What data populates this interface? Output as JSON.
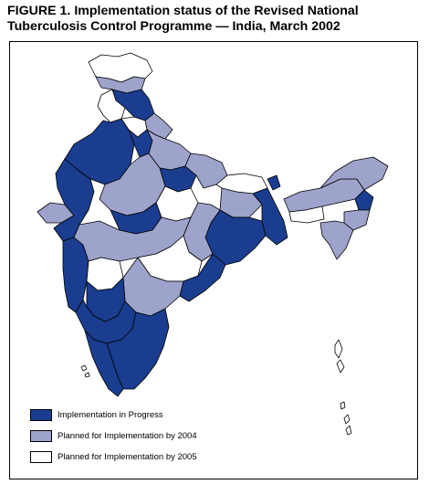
{
  "figure": {
    "title_line1": "FIGURE 1.  Implementation status of the Revised National",
    "title_line2": "Tuberculosis Control Programme — India, March 2002"
  },
  "map": {
    "colors": {
      "in_progress": "#1b3d8f",
      "planned_2004": "#9ea3cc",
      "planned_2005": "#ffffff",
      "border": "#000000"
    }
  },
  "legend": {
    "items": [
      {
        "label": "Implementation in Progress",
        "color": "#1b3d8f"
      },
      {
        "label": "Planned for Implementation by 2004",
        "color": "#9ea3cc"
      },
      {
        "label": "Planned for Implementation by 2005",
        "color": "#ffffff"
      }
    ]
  }
}
